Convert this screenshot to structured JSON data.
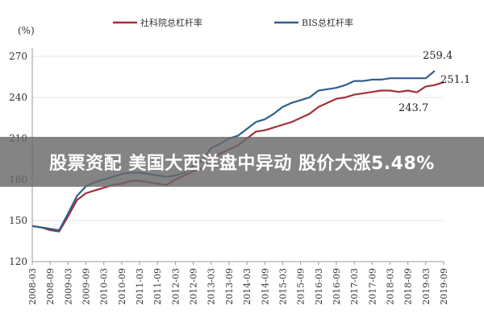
{
  "banner": {
    "text": "股票资配 美国大西洋盘中异动 股价大涨5.48%"
  },
  "chart_data": {
    "type": "line",
    "ylabel": "(%)",
    "ylim": [
      120,
      270
    ],
    "yticks": [
      120,
      150,
      180,
      210,
      240,
      270
    ],
    "x": [
      "2008-03",
      "2008-09",
      "2009-03",
      "2009-09",
      "2010-03",
      "2010-09",
      "2011-03",
      "2011-09",
      "2012-03",
      "2012-09",
      "2013-03",
      "2013-09",
      "2014-03",
      "2014-09",
      "2015-03",
      "2015-09",
      "2016-03",
      "2016-09",
      "2017-03",
      "2017-09",
      "2018-03",
      "2018-09",
      "2019-03",
      "2019-09"
    ],
    "xtick_labels": [
      "2008-03",
      "2008-09",
      "2009-03",
      "2009-09",
      "2010-03",
      "2010-09",
      "2011-03",
      "2011-09",
      "2012-03",
      "2012-09",
      "2013-03",
      "2013-09",
      "2014-03",
      "2014-09",
      "2015-03",
      "2015-09",
      "2016-03",
      "2016-09",
      "2017-03",
      "2017-09",
      "2018-03",
      "2018-09",
      "2019-03",
      "2019-09"
    ],
    "legend_position": "top",
    "series": [
      {
        "name": "社科院总杠杆率",
        "color": "#a3303a",
        "x": [
          "2008-03",
          "2008-06",
          "2008-09",
          "2008-12",
          "2009-03",
          "2009-06",
          "2009-09",
          "2009-12",
          "2010-03",
          "2010-06",
          "2010-09",
          "2010-12",
          "2011-03",
          "2011-06",
          "2011-09",
          "2011-12",
          "2012-03",
          "2012-06",
          "2012-09",
          "2012-12",
          "2013-03",
          "2013-06",
          "2013-09",
          "2013-12",
          "2014-03",
          "2014-06",
          "2014-09",
          "2014-12",
          "2015-03",
          "2015-06",
          "2015-09",
          "2015-12",
          "2016-03",
          "2016-06",
          "2016-09",
          "2016-12",
          "2017-03",
          "2017-06",
          "2017-09",
          "2017-12",
          "2018-03",
          "2018-06",
          "2018-09",
          "2018-12",
          "2019-03",
          "2019-06",
          "2019-09"
        ],
        "values": [
          146,
          145,
          143,
          142,
          153,
          165,
          170,
          172,
          174,
          176,
          177,
          179,
          179,
          178,
          177,
          176,
          180,
          183,
          186,
          188,
          195,
          199,
          202,
          205,
          210,
          215,
          216,
          218,
          220,
          222,
          225,
          228,
          233,
          236,
          239,
          240,
          242,
          243,
          244,
          245,
          245,
          244,
          245,
          243.7,
          248,
          249,
          251.1
        ]
      },
      {
        "name": "BIS总杠杆率",
        "color": "#2f5f8f",
        "x": [
          "2008-03",
          "2008-06",
          "2008-09",
          "2008-12",
          "2009-03",
          "2009-06",
          "2009-09",
          "2009-12",
          "2010-03",
          "2010-06",
          "2010-09",
          "2010-12",
          "2011-03",
          "2011-06",
          "2011-09",
          "2011-12",
          "2012-03",
          "2012-06",
          "2012-09",
          "2012-12",
          "2013-03",
          "2013-06",
          "2013-09",
          "2013-12",
          "2014-03",
          "2014-06",
          "2014-09",
          "2014-12",
          "2015-03",
          "2015-06",
          "2015-09",
          "2015-12",
          "2016-03",
          "2016-06",
          "2016-09",
          "2016-12",
          "2017-03",
          "2017-06",
          "2017-09",
          "2017-12",
          "2018-03",
          "2018-06",
          "2018-09",
          "2018-12",
          "2019-03",
          "2019-06"
        ],
        "values": [
          146,
          145,
          144,
          143,
          155,
          168,
          175,
          178,
          180,
          182,
          184,
          185,
          185,
          184,
          183,
          182,
          183,
          185,
          190,
          194,
          203,
          206,
          210,
          212,
          217,
          222,
          224,
          228,
          233,
          236,
          238,
          240,
          245,
          246,
          247,
          249,
          252,
          252,
          253,
          253,
          254,
          254,
          254,
          254,
          254,
          259.4
        ]
      }
    ],
    "annotations": [
      "259.4",
      "251.1",
      "243.7"
    ]
  }
}
